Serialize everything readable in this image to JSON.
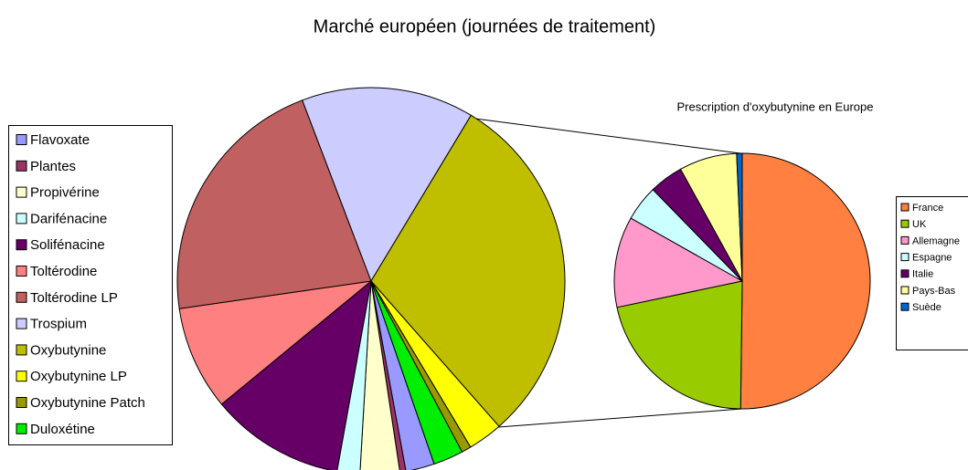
{
  "chart_data": [
    {
      "type": "pie",
      "title": "Marché européen (journées de traitement)",
      "categories": [
        "Flavoxate",
        "Plantes",
        "Propivérine",
        "Darifénacine",
        "Solifénacine",
        "Toltérodine",
        "Toltérodine LP",
        "Trospium",
        "Oxybutynine",
        "Oxybutynine LP",
        "Oxybutynine Patch",
        "Duloxétine"
      ],
      "values": [
        2.4,
        0.5,
        3.3,
        1.9,
        11.2,
        8.7,
        21.5,
        14.4,
        29.9,
        2.9,
        0.8,
        2.5
      ],
      "colors": [
        "#9999ff",
        "#993366",
        "#ffffcc",
        "#ccffff",
        "#660066",
        "#ff8080",
        "#c06060",
        "#ccccff",
        "#bfbf00",
        "#ffff00",
        "#999900",
        "#00ee00"
      ],
      "legend": "left"
    },
    {
      "type": "pie",
      "title": "Prescription d'oxybutynine en Europe",
      "categories": [
        "France",
        "UK",
        "Allemagne",
        "Espagne",
        "Italie",
        "Pays-Bas",
        "Suède"
      ],
      "values": [
        50.2,
        21.5,
        11.5,
        4.5,
        4.3,
        7.3,
        0.7
      ],
      "colors": [
        "#ff8040",
        "#99cc00",
        "#ff99cc",
        "#ccffff",
        "#660066",
        "#ffff99",
        "#0066cc"
      ],
      "legend": "right"
    }
  ]
}
